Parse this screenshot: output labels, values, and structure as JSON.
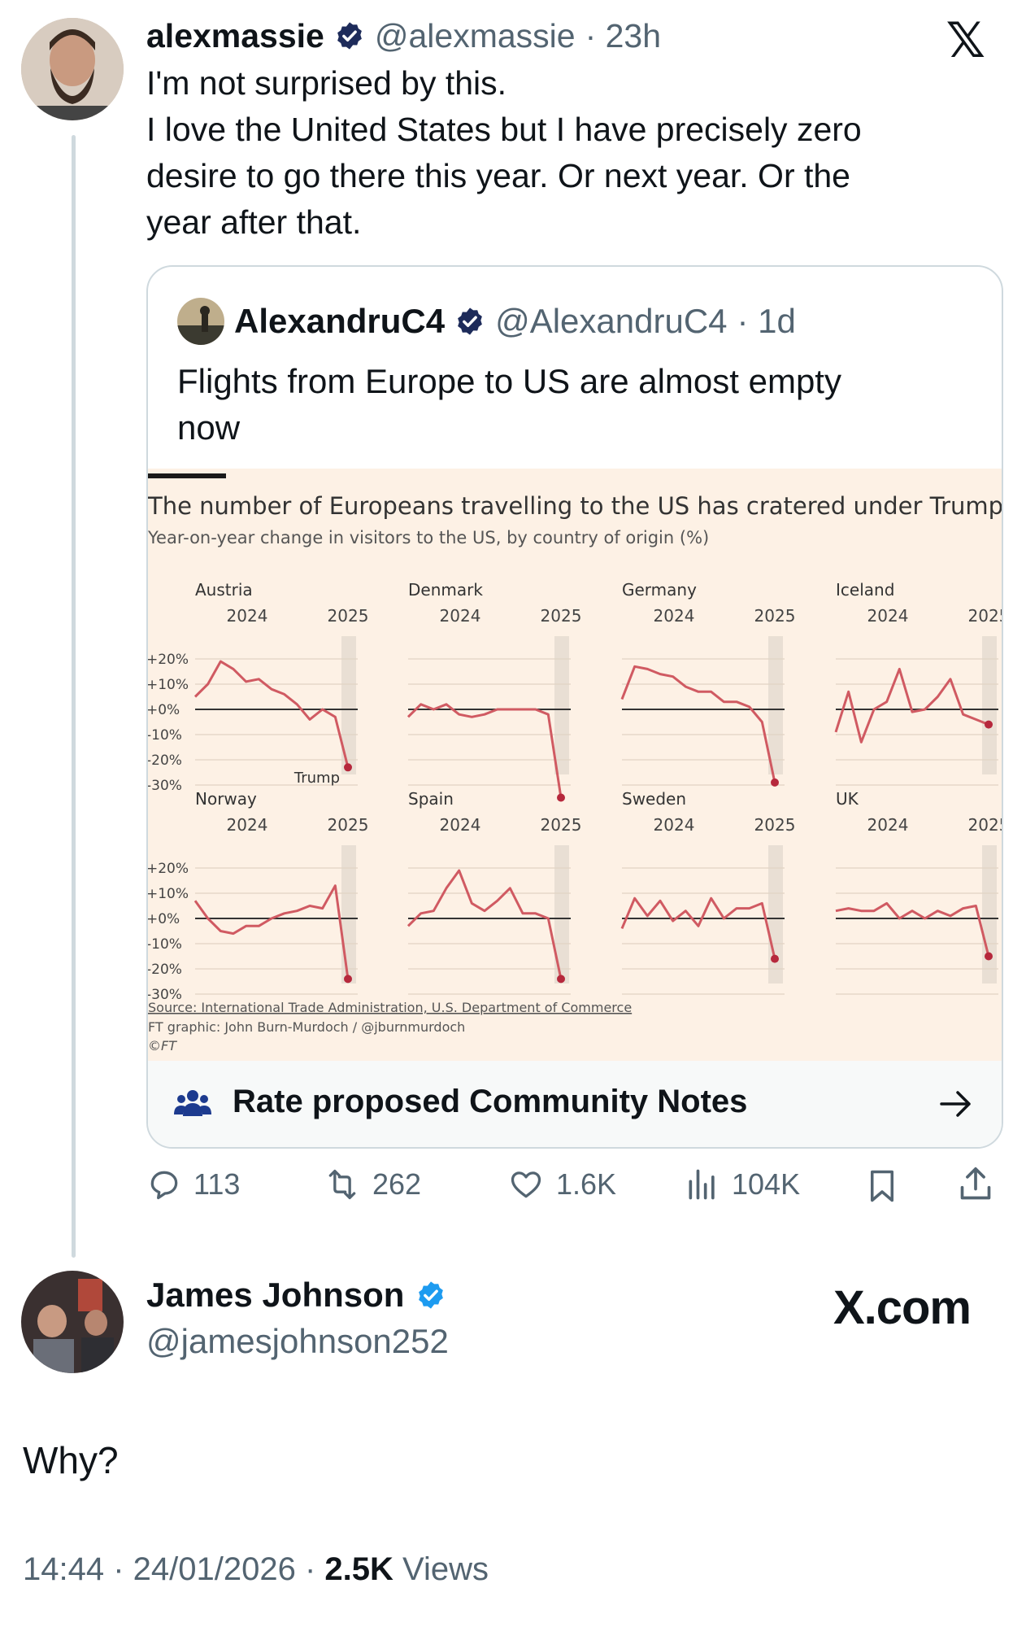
{
  "tweet": {
    "author_name": "alexmassie",
    "author_handle": "@alexmassie",
    "time": "· 23h",
    "lines": [
      "I'm not surprised by this.",
      "I love the United States but I have precisely zero",
      "desire to go there this year. Or next year. Or the",
      "year after that."
    ]
  },
  "quote": {
    "author_name": "AlexandruC4",
    "author_handle": "@AlexandruC4",
    "time": "· 1d",
    "lines": [
      "Flights from Europe to US are almost empty",
      "now"
    ],
    "community_notes_label": "Rate proposed Community Notes"
  },
  "chart_data": {
    "type": "line",
    "title": "The number of Europeans travelling to the US has cratered under Trump",
    "subtitle": "Year-on-year change in visitors to the US, by country of origin (%)",
    "x_ticks": [
      "2024",
      "2025"
    ],
    "y_ticks": [
      "+20%",
      "+10%",
      "+0%",
      "-10%",
      "-20%",
      "-30%"
    ],
    "ylim": [
      -30,
      20
    ],
    "annotation": "Trump",
    "source": "Source: International Trade Administration, U.S. Department of Commerce",
    "credit": "FT graphic: John Burn-Murdoch / @jburnmurdoch",
    "copyright": "©FT",
    "series": [
      {
        "name": "Austria",
        "values": [
          5,
          10,
          19,
          16,
          11,
          12,
          8,
          6,
          2,
          -4,
          0,
          -3,
          -23
        ]
      },
      {
        "name": "Denmark",
        "values": [
          -3,
          2,
          0,
          2,
          -2,
          -3,
          -2,
          0,
          0,
          0,
          0,
          -2,
          -35
        ]
      },
      {
        "name": "Germany",
        "values": [
          4,
          17,
          16,
          14,
          13,
          9,
          7,
          7,
          3,
          3,
          1,
          -5,
          -29
        ]
      },
      {
        "name": "Iceland",
        "values": [
          -9,
          7,
          -13,
          0,
          3,
          16,
          -1,
          0,
          5,
          12,
          -2,
          -4,
          -6
        ]
      },
      {
        "name": "Norway",
        "values": [
          7,
          0,
          -5,
          -6,
          -3,
          -3,
          0,
          2,
          3,
          5,
          4,
          13,
          -24
        ]
      },
      {
        "name": "Spain",
        "values": [
          -3,
          2,
          3,
          12,
          19,
          6,
          3,
          7,
          12,
          2,
          2,
          0,
          -24
        ]
      },
      {
        "name": "Sweden",
        "values": [
          -4,
          8,
          1,
          7,
          -1,
          3,
          -3,
          8,
          0,
          4,
          4,
          6,
          -16
        ]
      },
      {
        "name": "UK",
        "values": [
          3,
          4,
          3,
          3,
          6,
          0,
          3,
          0,
          3,
          1,
          4,
          5,
          -15
        ]
      }
    ]
  },
  "actions": {
    "replies": "113",
    "reposts": "262",
    "likes": "1.6K",
    "views": "104K"
  },
  "reply": {
    "author_name": "James Johnson",
    "author_handle": "@jamesjohnson252",
    "brand": "X.com",
    "text": "Why?",
    "time_date": "14:44 · 24/01/2026 · ",
    "views_count": "2.5K",
    "views_label": " Views"
  },
  "colors": {
    "accent_blue": "#1d9bf0",
    "verified_blue": "#1d9bf0",
    "chart_bg": "#fdf1e5",
    "line_red": "#d05a62",
    "dot_red": "#b6283c",
    "text_gray": "#536471"
  },
  "icons": [
    "verified-badge-icon",
    "x-logo-icon",
    "community-people-icon",
    "arrow-right-icon",
    "reply-icon",
    "repost-icon",
    "like-icon",
    "views-icon",
    "bookmark-icon",
    "share-icon"
  ]
}
